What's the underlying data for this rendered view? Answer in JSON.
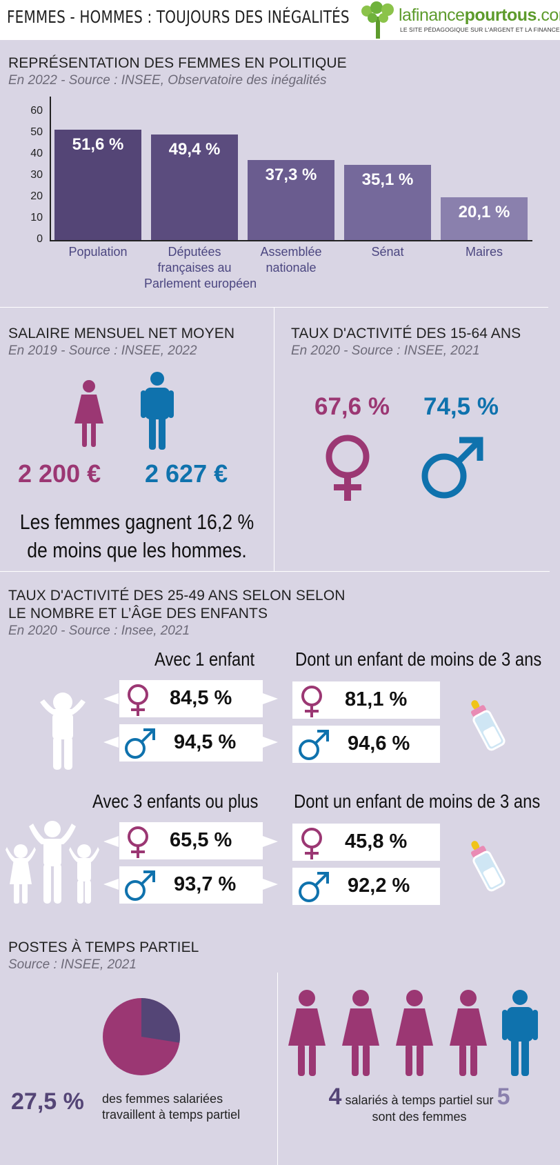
{
  "header": {
    "title": "FEMMES - HOMMES : TOUJOURS DES INÉGALITÉS",
    "logo_text_pre": "lafinance",
    "logo_text_mid": "pourtous",
    "logo_text_post": ".com",
    "logo_subtitle": "LE SITE PÉDAGOGIQUE SUR L'ARGENT ET LA FINANCE"
  },
  "politics": {
    "title": "REPRÉSENTATION DES FEMMES EN POLITIQUE",
    "subtitle": "En 2022 - Source : INSEE, Observatoire des inégalités"
  },
  "chart_data": {
    "type": "bar",
    "categories": [
      "Population",
      "Députées françaises au Parlement européen",
      "Assemblée nationale",
      "Sénat",
      "Maires"
    ],
    "category_lines": [
      [
        "Population"
      ],
      [
        "Députées",
        "françaises au",
        "Parlement européen"
      ],
      [
        "Assemblée",
        "nationale"
      ],
      [
        "Sénat"
      ],
      [
        "Maires"
      ]
    ],
    "values": [
      51.6,
      49.4,
      37.3,
      35.1,
      20.1
    ],
    "value_labels": [
      "51,6 %",
      "49,4 %",
      "37,3 %",
      "35,1 %",
      "20,1 %"
    ],
    "bar_colors": [
      "#544576",
      "#5b4c7e",
      "#6a5c8f",
      "#75699b",
      "#8a80ad"
    ],
    "yticks": [
      "0",
      "10",
      "20",
      "30",
      "40",
      "50",
      "60"
    ],
    "ylim": [
      0,
      60
    ]
  },
  "salary": {
    "title": "SALAIRE MENSUEL NET MOYEN",
    "subtitle": "En 2019 - Source : INSEE, 2022",
    "women_value": "2 200 €",
    "men_value": "2 627 €",
    "note_line1": "Les femmes gagnent 16,2 %",
    "note_line2": "de moins que les hommes."
  },
  "activity": {
    "title": "TAUX D'ACTIVITÉ DES 15-64 ANS",
    "subtitle": "En 2020 - Source : INSEE, 2021",
    "women_value": "67,6 %",
    "men_value": "74,5 %"
  },
  "children": {
    "title_line1": "TAUX D'ACTIVITÉ DES 25-49 ANS SELON SELON",
    "title_line2": "LE NOMBRE ET L’ÂGE DES ENFANTS",
    "subtitle": "En 2020 - Source : Insee, 2021",
    "group1": {
      "head_left": "Avec 1 enfant",
      "head_right": "Dont un enfant de moins de 3 ans",
      "women": "84,5 %",
      "men": "94,5 %",
      "women_u3": "81,1 %",
      "men_u3": "94,6 %"
    },
    "group2": {
      "head_left": "Avec 3 enfants ou plus",
      "head_right": "Dont un enfant de moins de 3 ans",
      "women": "65,5 %",
      "men": "93,7 %",
      "women_u3": "45,8 %",
      "men_u3": "92,2 %"
    }
  },
  "parttime": {
    "title": "POSTES À TEMPS PARTIEL",
    "subtitle": "Source : INSEE, 2021",
    "pie_share": 0.275,
    "big_value": "27,5 %",
    "desc_line1": "des femmes salariées",
    "desc_line2": "travaillent à temps partiel",
    "count_num": "4",
    "count_text": "salariés à temps partiel sur",
    "count_total": "5",
    "count_line2": "sont des femmes"
  },
  "colors": {
    "background": "#d9d5e4",
    "female": "#9b3773",
    "male": "#0f72ad",
    "purple_dark": "#544576",
    "accent_grey_purple": "#8a80ad"
  }
}
